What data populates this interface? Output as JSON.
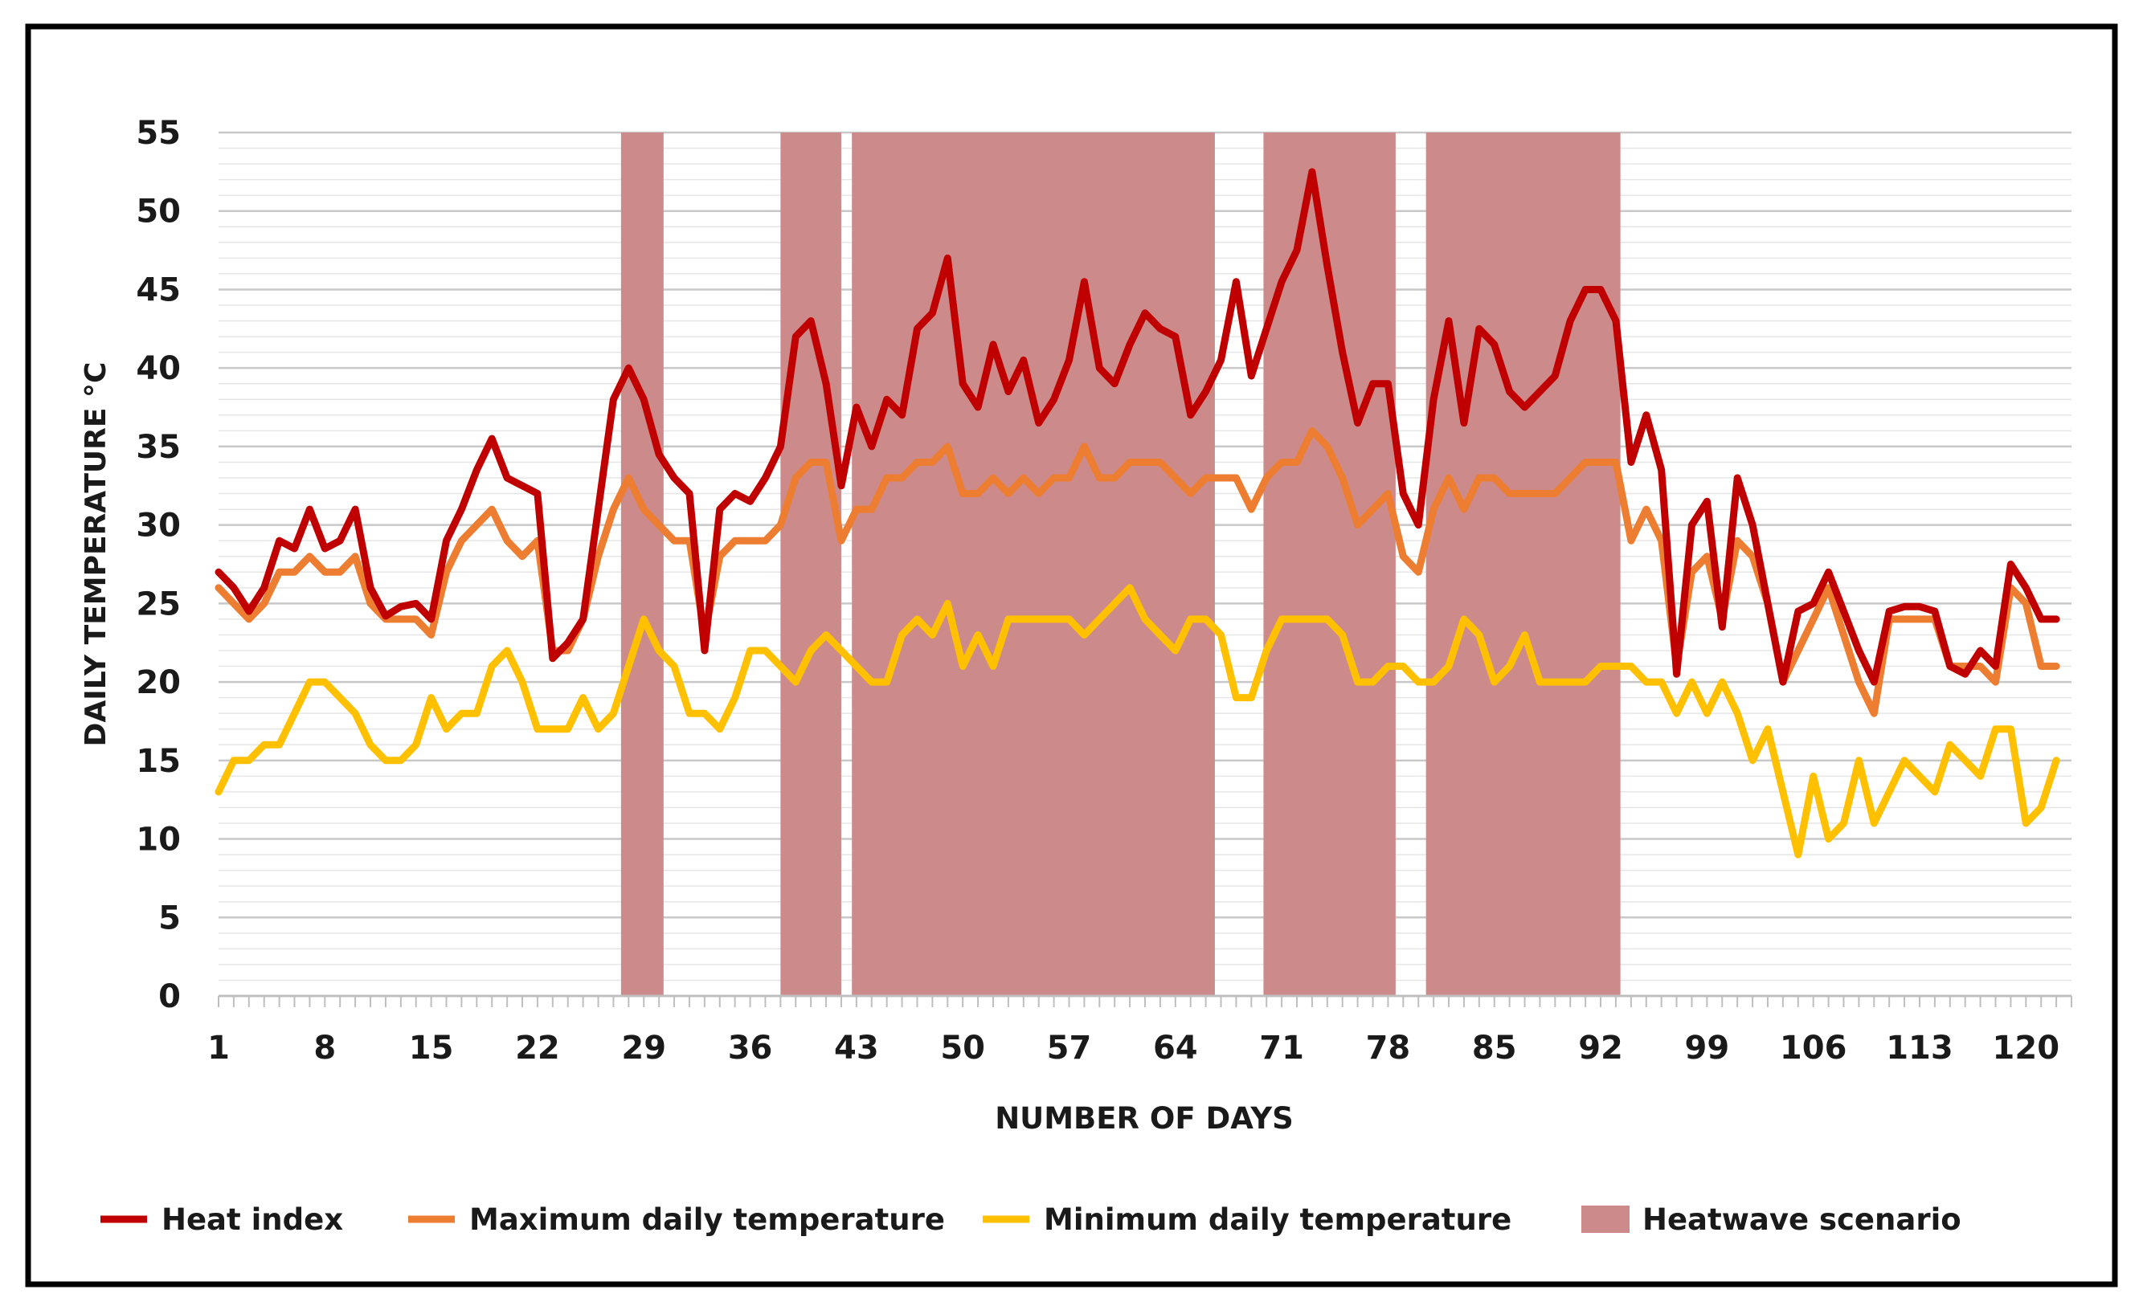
{
  "chart_data": {
    "type": "line",
    "title": "",
    "xlabel": "NUMBER OF DAYS",
    "ylabel": "DAILY TEMPERATURE °C",
    "xlim": [
      1,
      123
    ],
    "ylim": [
      0,
      55
    ],
    "x_ticks": [
      1,
      8,
      15,
      22,
      29,
      36,
      43,
      50,
      57,
      64,
      71,
      78,
      85,
      92,
      99,
      106,
      113,
      120
    ],
    "y_ticks": [
      0,
      5,
      10,
      15,
      20,
      25,
      30,
      35,
      40,
      45,
      50,
      55
    ],
    "minor_gridline_step": 1,
    "legend_position": "bottom",
    "heatwave_periods": [
      {
        "label": "Heatwave scenario",
        "start": 27.5,
        "end": 30.3
      },
      {
        "label": "Heatwave scenario",
        "start": 38.0,
        "end": 42.0
      },
      {
        "label": "Heatwave scenario",
        "start": 42.7,
        "end": 66.6
      },
      {
        "label": "Heatwave scenario",
        "start": 69.8,
        "end": 78.5
      },
      {
        "label": "Heatwave scenario",
        "start": 80.5,
        "end": 93.3
      }
    ],
    "heatwave_legend_label": "Heatwave scenario",
    "series": [
      {
        "name": "Heat index",
        "color": "#c00000",
        "values": [
          27,
          26,
          24.5,
          26,
          29,
          28.5,
          31,
          28.5,
          29,
          31,
          26,
          24.2,
          24.8,
          25,
          24,
          29,
          31,
          33.5,
          35.5,
          33,
          32.5,
          32,
          21.5,
          22.5,
          24,
          31,
          38,
          40,
          38,
          34.5,
          33,
          32,
          22,
          31,
          32,
          31.5,
          33,
          35,
          42,
          43,
          39,
          32.5,
          37.5,
          35,
          38,
          37,
          42.5,
          43.5,
          47,
          39,
          37.5,
          41.5,
          38.5,
          40.5,
          36.5,
          38,
          40.5,
          45.5,
          40,
          39,
          41.5,
          43.5,
          42.5,
          42,
          37,
          38.5,
          40.5,
          45.5,
          39.5,
          42.5,
          45.5,
          47.5,
          52.5,
          46.5,
          41,
          36.5,
          39,
          39,
          32,
          30,
          38,
          43,
          36.5,
          42.5,
          41.5,
          38.5,
          37.5,
          38.5,
          39.5,
          43,
          45,
          45,
          43,
          34,
          37,
          33.5,
          20.5,
          30,
          31.5,
          23.5,
          33,
          30,
          25,
          20,
          24.5,
          25,
          27,
          24.5,
          22,
          20,
          24.5,
          24.8,
          24.8,
          24.5,
          21,
          20.5,
          22,
          21,
          27.5,
          26,
          24,
          24
        ]
      },
      {
        "name": "Maximum daily temperature",
        "color": "#ed7d31",
        "values": [
          26,
          25,
          24,
          25,
          27,
          27,
          28,
          27,
          27,
          28,
          25,
          24,
          24,
          24,
          23,
          27,
          29,
          30,
          31,
          29,
          28,
          29,
          22,
          22,
          24,
          28,
          31,
          33,
          31,
          30,
          29,
          29,
          23,
          28,
          29,
          29,
          29,
          30,
          33,
          34,
          34,
          29,
          31,
          31,
          33,
          33,
          34,
          34,
          35,
          32,
          32,
          33,
          32,
          33,
          32,
          33,
          33,
          35,
          33,
          33,
          34,
          34,
          34,
          33,
          32,
          33,
          33,
          33,
          31,
          33,
          34,
          34,
          36,
          35,
          33,
          30,
          31,
          32,
          28,
          27,
          31,
          33,
          31,
          33,
          33,
          32,
          32,
          32,
          32,
          33,
          34,
          34,
          34,
          29,
          31,
          29,
          21,
          27,
          28,
          24,
          29,
          28,
          25,
          20,
          22,
          24,
          26,
          23,
          20,
          18,
          24,
          24,
          24,
          24,
          21,
          21,
          21,
          20,
          26,
          25,
          21,
          21
        ]
      },
      {
        "name": "Minimum daily temperature",
        "color": "#ffc000",
        "values": [
          13,
          15,
          15,
          16,
          16,
          18,
          20,
          20,
          19,
          18,
          16,
          15,
          15,
          16,
          19,
          17,
          18,
          18,
          21,
          22,
          20,
          17,
          17,
          17,
          19,
          17,
          18,
          21,
          24,
          22,
          21,
          18,
          18,
          17,
          19,
          22,
          22,
          21,
          20,
          22,
          23,
          22,
          21,
          20,
          20,
          23,
          24,
          23,
          25,
          21,
          23,
          21,
          24,
          24,
          24,
          24,
          24,
          23,
          24,
          25,
          26,
          24,
          23,
          22,
          24,
          24,
          23,
          19,
          19,
          22,
          24,
          24,
          24,
          24,
          23,
          20,
          20,
          21,
          21,
          20,
          20,
          21,
          24,
          23,
          20,
          21,
          23,
          20,
          20,
          20,
          20,
          21,
          21,
          21,
          20,
          20,
          18,
          20,
          18,
          20,
          18,
          15,
          17,
          13,
          9,
          14,
          10,
          11,
          15,
          11,
          13,
          15,
          14,
          13,
          16,
          15,
          14,
          17,
          17,
          11,
          12,
          15
        ]
      }
    ]
  }
}
